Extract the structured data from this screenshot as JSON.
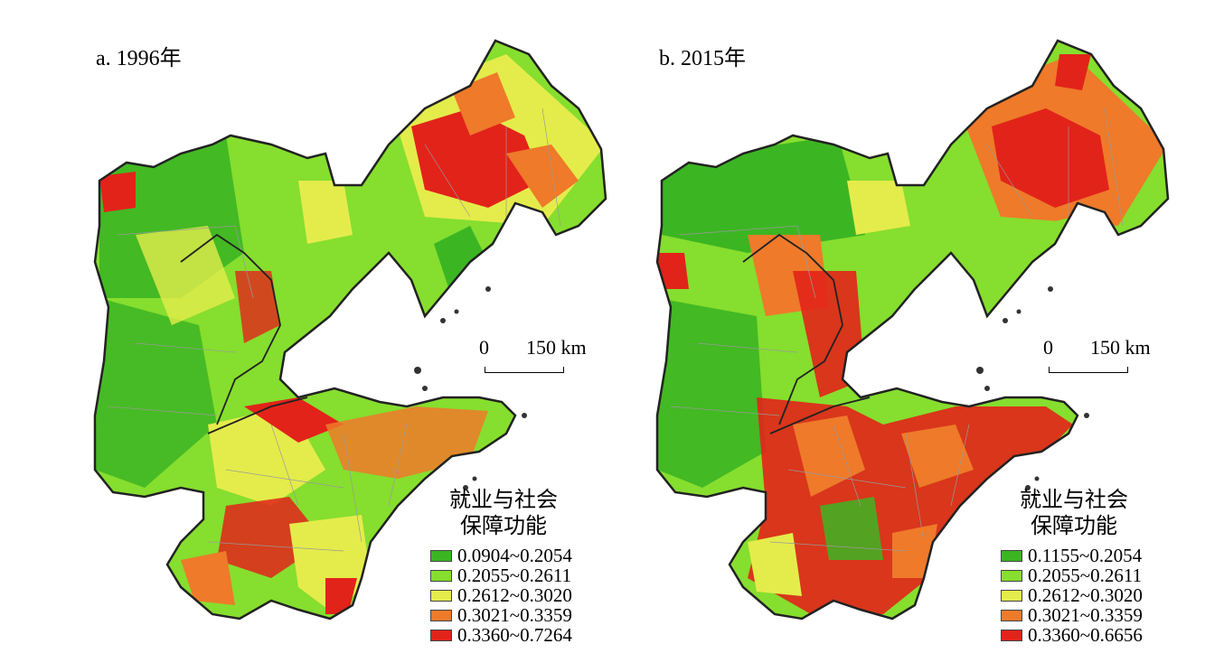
{
  "panels": [
    {
      "title": "a. 1996年",
      "scale": {
        "zero": "0",
        "length": "150 km"
      },
      "legend": {
        "title_line1": "就业与社会",
        "title_line2": "保障功能",
        "items": [
          {
            "label": "0.0904~0.2054",
            "color": "#3cb523"
          },
          {
            "label": "0.2055~0.2611",
            "color": "#86de2e"
          },
          {
            "label": "0.2612~0.3020",
            "color": "#e4ec4b"
          },
          {
            "label": "0.3021~0.3359",
            "color": "#ee7a2a"
          },
          {
            "label": "0.3360~0.7264",
            "color": "#e2231a"
          }
        ]
      }
    },
    {
      "title": "b. 2015年",
      "scale": {
        "zero": "0",
        "length": "150 km"
      },
      "legend": {
        "title_line1": "就业与社会",
        "title_line2": "保障功能",
        "items": [
          {
            "label": "0.1155~0.2054",
            "color": "#3cb523"
          },
          {
            "label": "0.2055~0.2611",
            "color": "#86de2e"
          },
          {
            "label": "0.2612~0.3020",
            "color": "#e4ec4b"
          },
          {
            "label": "0.3021~0.3359",
            "color": "#ee7a2a"
          },
          {
            "label": "0.3360~0.6656",
            "color": "#e2231a"
          }
        ]
      }
    }
  ]
}
